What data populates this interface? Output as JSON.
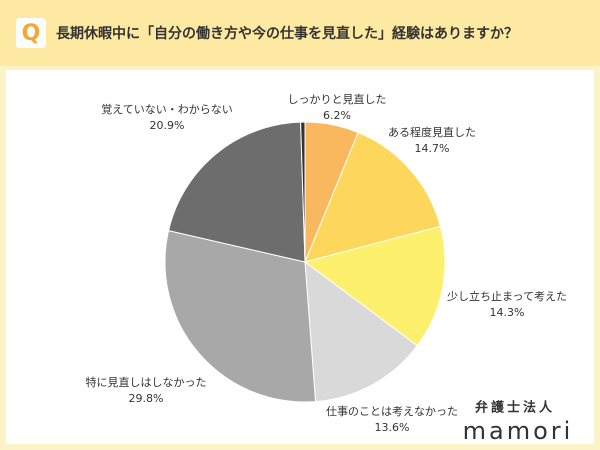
{
  "chart_data": {
    "type": "pie",
    "badge": "Q",
    "title": "長期休暇中に「自分の働き方や今の仕事を見直した」経験はありますか？",
    "categories": [
      "しっかりと見直した",
      "ある程度見直した",
      "少し立ち止まって考えた",
      "仕事のことは考えなかった",
      "特に見直しはしなかった",
      "覚えていない・わからない",
      null
    ],
    "values": [
      6.2,
      14.7,
      14.3,
      13.6,
      29.8,
      20.9,
      0.5
    ],
    "value_labels": [
      "6.2%",
      "14.7%",
      "14.3%",
      "13.6%",
      "29.8%",
      "20.9%",
      null
    ],
    "colors": [
      "#f9b75e",
      "#fdd75b",
      "#fcf06c",
      "#d9d9d9",
      "#a8a8a8",
      "#6d6d6d",
      "#333333"
    ]
  },
  "logo": {
    "line1": "弁護士法人",
    "line2": "mamori"
  }
}
